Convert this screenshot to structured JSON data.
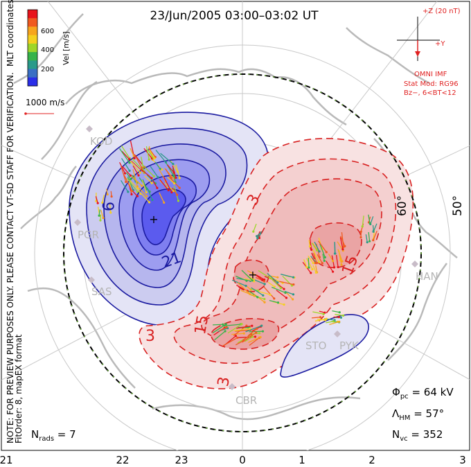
{
  "title": "23/Jun/2005 03:00–03:02 UT",
  "colorbar": {
    "label": "Vel [m/s]",
    "ticks": [
      "600",
      "400",
      "200"
    ],
    "colors": [
      "#e8141c",
      "#f05a20",
      "#f7a51e",
      "#f5d020",
      "#9ed62a",
      "#36b34a",
      "#2a9a8a",
      "#3a6fc4",
      "#2a2ee8"
    ]
  },
  "side_labels": {
    "coordinates": "MLT coordinates",
    "note": "NOTE: FOR PREVIEW PURPOSES ONLY. PLEASE CONTACT VT-SD STAFF FOR VERIFICATION.",
    "fit": "FitOrder: 8,  mapEX format"
  },
  "velocity_scale": "1000 m/s",
  "imf": {
    "z_label": "+Z (20 nT)",
    "y_label": "+Y",
    "source": "OMNI IMF",
    "model": "Stat Mod: RG96",
    "condition": "Bz−, 6<BT<12"
  },
  "latitude_labels": [
    "60°",
    "50°"
  ],
  "radars": [
    "KOD",
    "PGR",
    "SAS",
    "HAN",
    "STO",
    "PYK",
    "CBR"
  ],
  "contour_labels": {
    "negative": [
      "9",
      "21"
    ],
    "positive": [
      "3",
      "15",
      "15",
      "3",
      "3"
    ]
  },
  "stats": {
    "phi": "Φ",
    "phi_sub": "pc",
    "phi_value": " = 64 kV",
    "lambda": "Λ",
    "lambda_sub": "HM",
    "lambda_value": " = 57°",
    "nvc": "N",
    "nvc_sub": "vc",
    "nvc_value": " = 352",
    "nrads": "N",
    "nrads_sub": "rads",
    "nrads_value": " = 7"
  },
  "mlt_ticks": [
    "21",
    "22",
    "23",
    "0",
    "1",
    "2",
    "3"
  ]
}
